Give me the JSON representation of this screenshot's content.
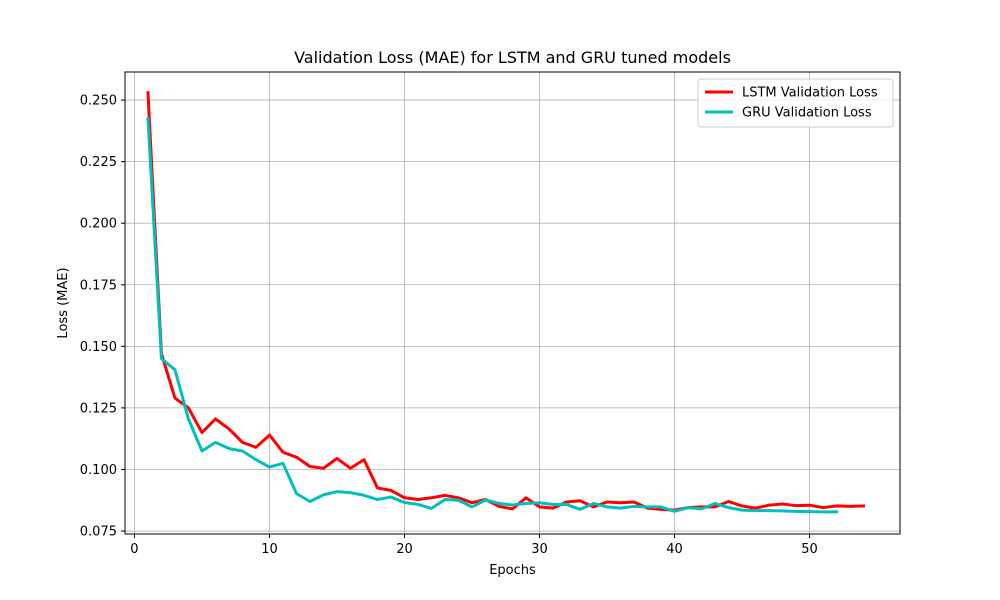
{
  "chart_data": {
    "type": "line",
    "title": "Validation Loss (MAE) for LSTM and GRU tuned models",
    "xlabel": "Epochs",
    "ylabel": "Loss (MAE)",
    "xlim": [
      -0.7,
      56.7
    ],
    "ylim": [
      0.0738,
      0.2614
    ],
    "xticks": [
      0,
      10,
      20,
      30,
      40,
      50
    ],
    "yticks": [
      0.075,
      0.1,
      0.125,
      0.15,
      0.175,
      0.2,
      0.225,
      0.25
    ],
    "ytick_labels": [
      "0.075",
      "0.100",
      "0.125",
      "0.150",
      "0.175",
      "0.200",
      "0.225",
      "0.250"
    ],
    "grid": true,
    "legend_position": "top-right",
    "series": [
      {
        "name": "LSTM Validation Loss",
        "color": "#ff0000",
        "x": [
          1,
          2,
          3,
          4,
          5,
          6,
          7,
          8,
          9,
          10,
          11,
          12,
          13,
          14,
          15,
          16,
          17,
          18,
          19,
          20,
          21,
          22,
          23,
          24,
          25,
          26,
          27,
          28,
          29,
          30,
          31,
          32,
          33,
          34,
          35,
          36,
          37,
          38,
          39,
          40,
          41,
          42,
          43,
          44,
          45,
          46,
          47,
          48,
          49,
          50,
          51,
          52,
          53,
          54
        ],
        "values": [
          0.253,
          0.147,
          0.129,
          0.125,
          0.115,
          0.1205,
          0.1165,
          0.111,
          0.109,
          0.114,
          0.107,
          0.105,
          0.1012,
          0.1005,
          0.1045,
          0.1005,
          0.104,
          0.0925,
          0.0915,
          0.0885,
          0.0878,
          0.0885,
          0.0895,
          0.0885,
          0.0865,
          0.0878,
          0.085,
          0.084,
          0.0885,
          0.0848,
          0.0843,
          0.0868,
          0.0873,
          0.0848,
          0.0868,
          0.0865,
          0.0868,
          0.0843,
          0.0838,
          0.0835,
          0.0845,
          0.0848,
          0.0848,
          0.087,
          0.0852,
          0.0843,
          0.0855,
          0.086,
          0.0853,
          0.0855,
          0.0845,
          0.0852,
          0.085,
          0.0852
        ]
      },
      {
        "name": "GRU Validation Loss",
        "color": "#00bfbf",
        "x": [
          1,
          2,
          3,
          4,
          5,
          6,
          7,
          8,
          9,
          10,
          11,
          12,
          13,
          14,
          15,
          16,
          17,
          18,
          19,
          20,
          21,
          22,
          23,
          24,
          25,
          26,
          27,
          28,
          29,
          30,
          31,
          32,
          33,
          34,
          35,
          36,
          37,
          38,
          39,
          40,
          41,
          42,
          43,
          44,
          45,
          46,
          47,
          48,
          49,
          50,
          51,
          52
        ],
        "values": [
          0.2425,
          0.145,
          0.1405,
          0.1205,
          0.1075,
          0.111,
          0.1085,
          0.1075,
          0.104,
          0.101,
          0.1025,
          0.0902,
          0.087,
          0.0897,
          0.091,
          0.0906,
          0.0895,
          0.0878,
          0.0888,
          0.0866,
          0.0858,
          0.0842,
          0.0878,
          0.0875,
          0.0848,
          0.0876,
          0.0862,
          0.0856,
          0.0862,
          0.0865,
          0.0858,
          0.0858,
          0.0838,
          0.0862,
          0.0848,
          0.0843,
          0.085,
          0.0848,
          0.0848,
          0.083,
          0.0845,
          0.084,
          0.0862,
          0.0845,
          0.0835,
          0.0833,
          0.0833,
          0.0832,
          0.083,
          0.0829,
          0.0828,
          0.0828
        ]
      }
    ]
  }
}
